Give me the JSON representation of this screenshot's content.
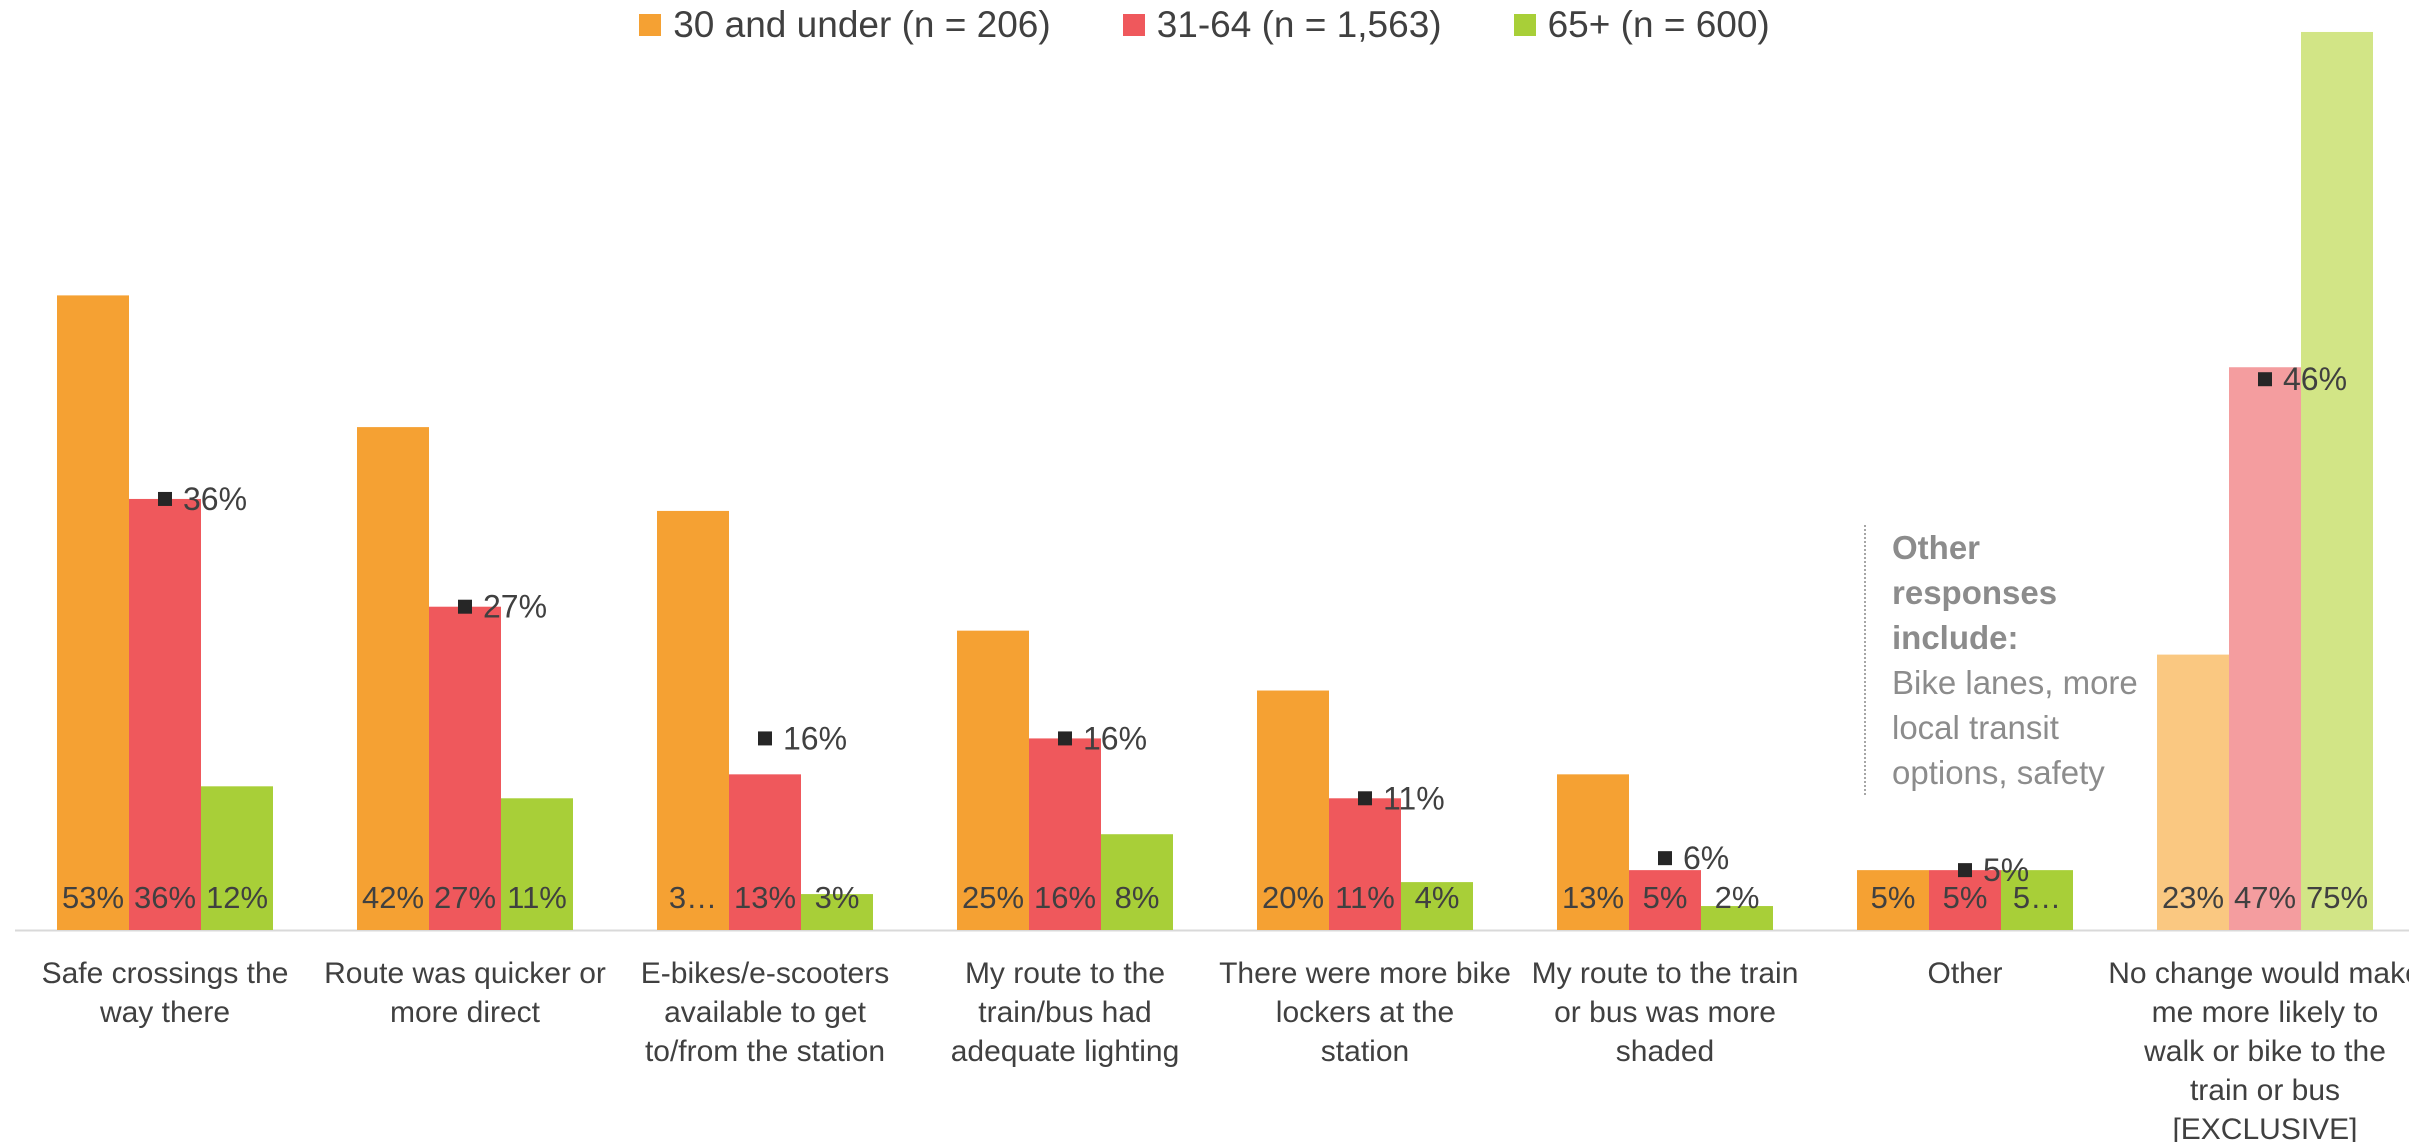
{
  "chart_data": {
    "type": "bar",
    "categories": [
      "Safe crossings the way there",
      "Route was quicker or more direct",
      "E-bikes/e-scooters available to get to/from the station",
      "My route to the train/bus had adequate lighting",
      "There were more bike lockers at the station",
      "My route to the train or bus was more shaded",
      "Other",
      "No change would make me more likely to walk or bike to the train or bus [EXCLUSIVE]"
    ],
    "series": [
      {
        "name": "30 and under (n = 206)",
        "color": "#F5A133",
        "values": [
          53,
          42,
          35,
          25,
          20,
          13,
          5,
          23
        ],
        "labels": [
          "53%",
          "42%",
          "3…",
          "25%",
          "20%",
          "13%",
          "5%",
          "23%"
        ]
      },
      {
        "name": "31-64 (n = 1,563)",
        "color": "#EF585C",
        "values": [
          36,
          27,
          13,
          16,
          11,
          5,
          5,
          47
        ],
        "labels": [
          "36%",
          "27%",
          "13%",
          "16%",
          "11%",
          "5%",
          "5%",
          "47%"
        ]
      },
      {
        "name": "65+ (n = 600)",
        "color": "#A8CF38",
        "values": [
          12,
          11,
          3,
          8,
          4,
          2,
          5,
          75
        ],
        "labels": [
          "12%",
          "11%",
          "3%",
          "8%",
          "4%",
          "2%",
          "5…",
          "75%"
        ]
      }
    ],
    "markers": {
      "values": [
        36,
        27,
        16,
        16,
        11,
        6,
        5,
        46
      ],
      "labels": [
        "36%",
        "27%",
        "16%",
        "16%",
        "11%",
        "6%",
        "5%",
        "46%"
      ],
      "color": "#262626"
    },
    "faded_categories": [
      7
    ],
    "faded_colors": [
      "#FAC881",
      "#F49D9F",
      "#D2E586"
    ],
    "ylim": [
      0,
      76
    ],
    "grid": false,
    "legend_position": "top-center"
  },
  "legend": [
    {
      "label": "30 and under (n = 206)",
      "color": "#F5A133"
    },
    {
      "label": "31-64 (n = 1,563)",
      "color": "#EF585C"
    },
    {
      "label": "65+ (n = 600)",
      "color": "#A8CF38"
    }
  ],
  "note": {
    "heading": "Other responses include:",
    "body": "Bike lanes, more local transit options, safety"
  }
}
